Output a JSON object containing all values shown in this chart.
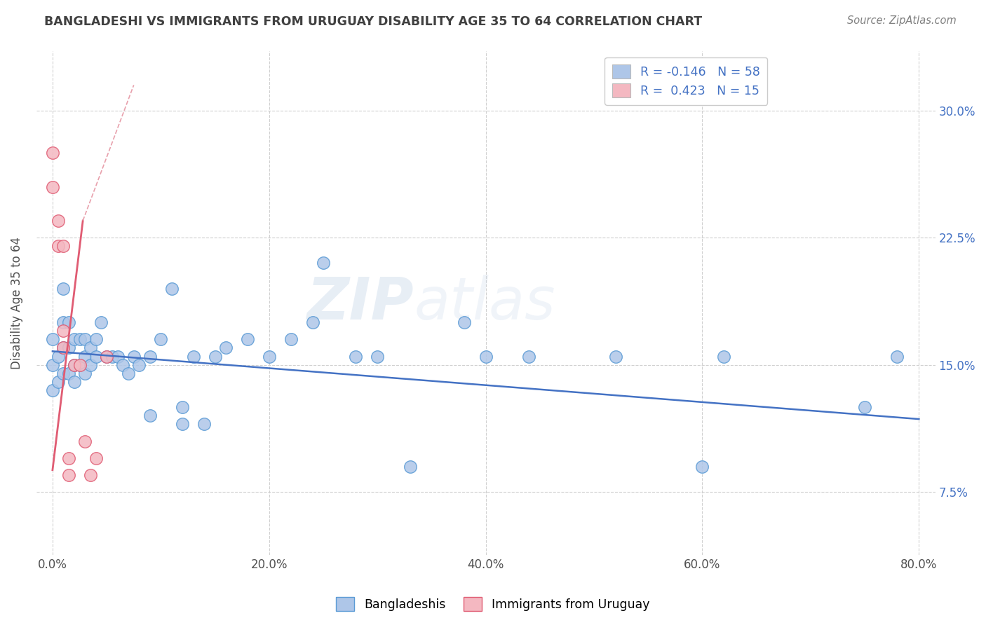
{
  "title": "BANGLADESHI VS IMMIGRANTS FROM URUGUAY DISABILITY AGE 35 TO 64 CORRELATION CHART",
  "source": "Source: ZipAtlas.com",
  "xlabel_ticks": [
    "0.0%",
    "20.0%",
    "40.0%",
    "60.0%",
    "80.0%"
  ],
  "xlabel_vals": [
    0.0,
    0.2,
    0.4,
    0.6,
    0.8
  ],
  "ylabel_ticks": [
    "7.5%",
    "15.0%",
    "22.5%",
    "30.0%"
  ],
  "ylabel_vals": [
    0.075,
    0.15,
    0.225,
    0.3
  ],
  "ylabel_label": "Disability Age 35 to 64",
  "xlim": [
    -0.015,
    0.815
  ],
  "ylim": [
    0.038,
    0.335
  ],
  "watermark": "ZIPatlas",
  "legend_entries": [
    {
      "label": "R = -0.146   N = 58",
      "color": "#aec6e8"
    },
    {
      "label": "R =  0.423   N = 15",
      "color": "#f4b8c1"
    }
  ],
  "bangladeshi_scatter": {
    "x": [
      0.0,
      0.0,
      0.0,
      0.005,
      0.005,
      0.01,
      0.01,
      0.01,
      0.01,
      0.015,
      0.015,
      0.015,
      0.02,
      0.02,
      0.02,
      0.025,
      0.025,
      0.03,
      0.03,
      0.03,
      0.035,
      0.035,
      0.04,
      0.04,
      0.045,
      0.05,
      0.055,
      0.06,
      0.065,
      0.07,
      0.075,
      0.08,
      0.09,
      0.09,
      0.1,
      0.11,
      0.12,
      0.12,
      0.13,
      0.14,
      0.15,
      0.16,
      0.18,
      0.2,
      0.22,
      0.24,
      0.25,
      0.28,
      0.3,
      0.33,
      0.38,
      0.4,
      0.44,
      0.52,
      0.6,
      0.62,
      0.75,
      0.78
    ],
    "y": [
      0.135,
      0.15,
      0.165,
      0.14,
      0.155,
      0.145,
      0.16,
      0.175,
      0.195,
      0.145,
      0.16,
      0.175,
      0.14,
      0.15,
      0.165,
      0.15,
      0.165,
      0.145,
      0.155,
      0.165,
      0.15,
      0.16,
      0.155,
      0.165,
      0.175,
      0.155,
      0.155,
      0.155,
      0.15,
      0.145,
      0.155,
      0.15,
      0.12,
      0.155,
      0.165,
      0.195,
      0.115,
      0.125,
      0.155,
      0.115,
      0.155,
      0.16,
      0.165,
      0.155,
      0.165,
      0.175,
      0.21,
      0.155,
      0.155,
      0.09,
      0.175,
      0.155,
      0.155,
      0.155,
      0.09,
      0.155,
      0.125,
      0.155
    ],
    "color": "#aec6e8",
    "edge_color": "#5b9bd5"
  },
  "uruguay_scatter": {
    "x": [
      0.0,
      0.0,
      0.005,
      0.005,
      0.01,
      0.01,
      0.01,
      0.015,
      0.015,
      0.02,
      0.025,
      0.03,
      0.035,
      0.04,
      0.05
    ],
    "y": [
      0.255,
      0.275,
      0.22,
      0.235,
      0.16,
      0.17,
      0.22,
      0.085,
      0.095,
      0.15,
      0.15,
      0.105,
      0.085,
      0.095,
      0.155
    ],
    "color": "#f4b8c1",
    "edge_color": "#e05c73"
  },
  "bangladeshi_trend": {
    "x_start": 0.0,
    "x_end": 0.8,
    "y_start": 0.158,
    "y_end": 0.118,
    "color": "#4472c4",
    "linewidth": 1.8
  },
  "uruguay_trend_solid": {
    "x_start": 0.0,
    "x_end": 0.028,
    "y_start": 0.088,
    "y_end": 0.235,
    "color": "#e05c73",
    "linewidth": 2.0
  },
  "uruguay_trend_dashed": {
    "x_start": 0.028,
    "x_end": 0.075,
    "y_start": 0.235,
    "y_end": 0.315,
    "color": "#e8a0ac",
    "linewidth": 1.2
  },
  "bg_color": "#ffffff",
  "grid_color": "#d0d0d0",
  "title_color": "#404040",
  "source_color": "#808080"
}
